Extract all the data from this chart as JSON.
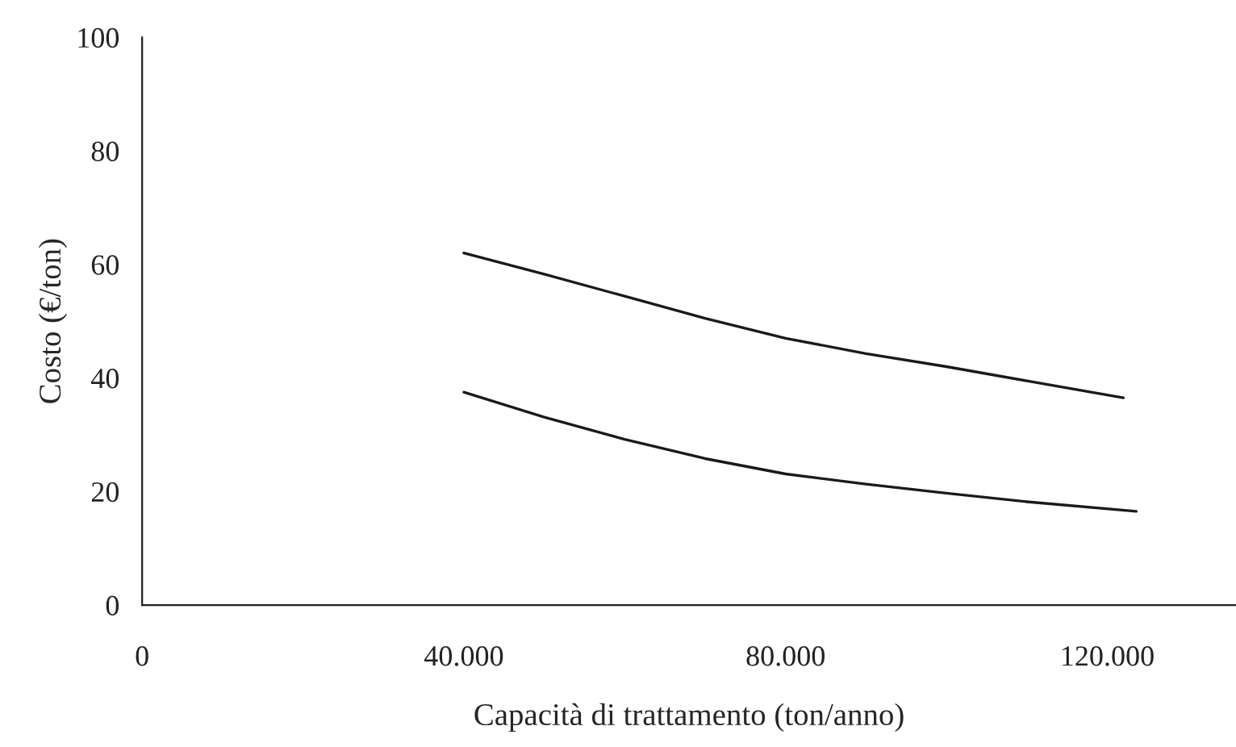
{
  "chart_data": {
    "type": "line",
    "xlabel": "Capacità di trattamento (ton/anno)",
    "ylabel": "Costo (€/ton)",
    "xlim": [
      0,
      136000
    ],
    "ylim": [
      0,
      100
    ],
    "xticks": [
      0,
      {
        "value": 40000,
        "label": "40.000"
      },
      {
        "value": 80000,
        "label": "80.000"
      },
      {
        "value": 120000,
        "label": "120.000"
      }
    ],
    "yticks": [
      0,
      20,
      40,
      60,
      80,
      100
    ],
    "grid": false,
    "marker": "none",
    "line_style": "solid",
    "series": [
      {
        "color": "#1a1a1a",
        "x": [
          40000,
          50000,
          60000,
          70000,
          80000,
          90000,
          100000,
          110000,
          122000
        ],
        "values": [
          62,
          58.3,
          54.4,
          50.5,
          47,
          44.3,
          42,
          39.5,
          36.5
        ]
      },
      {
        "color": "#1a1a1a",
        "x": [
          40000,
          50000,
          60000,
          70000,
          80000,
          90000,
          100000,
          110000,
          123600
        ],
        "values": [
          37.5,
          33.1,
          29.2,
          25.8,
          23.1,
          21.3,
          19.7,
          18.2,
          16.5
        ]
      }
    ]
  }
}
